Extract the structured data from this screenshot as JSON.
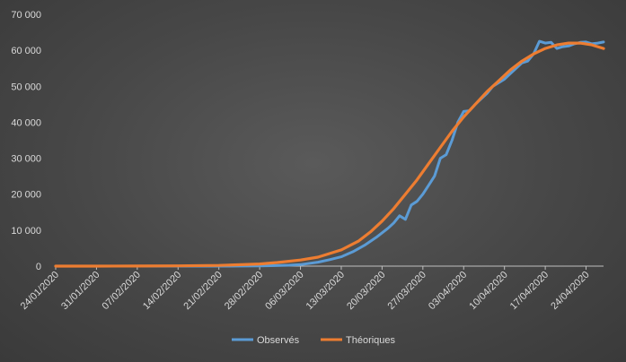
{
  "chart_data": {
    "type": "line",
    "title": "",
    "xlabel": "",
    "ylabel": "",
    "x_ticks": [
      "24/01/2020",
      "31/01/2020",
      "07/02/2020",
      "14/02/2020",
      "21/02/2020",
      "28/02/2020",
      "06/03/2020",
      "13/03/2020",
      "20/03/2020",
      "27/03/2020",
      "03/04/2020",
      "10/04/2020",
      "17/04/2020",
      "24/04/2020"
    ],
    "y_ticks": [
      "0",
      "10 000",
      "20 000",
      "30 000",
      "40 000",
      "50 000",
      "60 000",
      "70 000"
    ],
    "ylim": [
      0,
      70000
    ],
    "grid": false,
    "legend_position": "bottom",
    "series": [
      {
        "name": "Observés",
        "color": "#5b9bd5",
        "points": [
          [
            "24/01/2020",
            0
          ],
          [
            "31/01/2020",
            0
          ],
          [
            "07/02/2020",
            0
          ],
          [
            "14/02/2020",
            10
          ],
          [
            "21/02/2020",
            12
          ],
          [
            "28/02/2020",
            50
          ],
          [
            "01/03/2020",
            120
          ],
          [
            "04/03/2020",
            250
          ],
          [
            "06/03/2020",
            420
          ],
          [
            "09/03/2020",
            1100
          ],
          [
            "11/03/2020",
            1800
          ],
          [
            "13/03/2020",
            2600
          ],
          [
            "15/03/2020",
            4000
          ],
          [
            "17/03/2020",
            5800
          ],
          [
            "19/03/2020",
            8000
          ],
          [
            "21/03/2020",
            10500
          ],
          [
            "22/03/2020",
            12000
          ],
          [
            "23/03/2020",
            14000
          ],
          [
            "24/03/2020",
            13000
          ],
          [
            "25/03/2020",
            17000
          ],
          [
            "26/03/2020",
            18000
          ],
          [
            "27/03/2020",
            20000
          ],
          [
            "28/03/2020",
            22500
          ],
          [
            "29/03/2020",
            25000
          ],
          [
            "30/03/2020",
            30000
          ],
          [
            "31/03/2020",
            31000
          ],
          [
            "01/04/2020",
            35000
          ],
          [
            "02/04/2020",
            40000
          ],
          [
            "03/04/2020",
            43000
          ],
          [
            "04/04/2020",
            43200
          ],
          [
            "05/04/2020",
            45000
          ],
          [
            "06/04/2020",
            46500
          ],
          [
            "07/04/2020",
            48000
          ],
          [
            "08/04/2020",
            50000
          ],
          [
            "09/04/2020",
            51000
          ],
          [
            "10/04/2020",
            52000
          ],
          [
            "11/04/2020",
            53500
          ],
          [
            "12/04/2020",
            55000
          ],
          [
            "13/04/2020",
            56500
          ],
          [
            "14/04/2020",
            57000
          ],
          [
            "15/04/2020",
            59000
          ],
          [
            "16/04/2020",
            62500
          ],
          [
            "17/04/2020",
            62000
          ],
          [
            "18/04/2020",
            62200
          ],
          [
            "19/04/2020",
            60500
          ],
          [
            "20/04/2020",
            61000
          ],
          [
            "21/04/2020",
            61200
          ],
          [
            "22/04/2020",
            61800
          ],
          [
            "23/04/2020",
            62200
          ],
          [
            "24/04/2020",
            62300
          ],
          [
            "25/04/2020",
            61800
          ],
          [
            "26/04/2020",
            62000
          ],
          [
            "27/04/2020",
            62300
          ]
        ]
      },
      {
        "name": "Théoriques",
        "color": "#ed7d31",
        "points": [
          [
            "24/01/2020",
            0
          ],
          [
            "31/01/2020",
            0
          ],
          [
            "07/02/2020",
            20
          ],
          [
            "14/02/2020",
            80
          ],
          [
            "21/02/2020",
            200
          ],
          [
            "28/02/2020",
            600
          ],
          [
            "02/03/2020",
            1000
          ],
          [
            "06/03/2020",
            1700
          ],
          [
            "09/03/2020",
            2500
          ],
          [
            "13/03/2020",
            4500
          ],
          [
            "16/03/2020",
            7000
          ],
          [
            "18/03/2020",
            9500
          ],
          [
            "20/03/2020",
            12500
          ],
          [
            "22/03/2020",
            16000
          ],
          [
            "24/03/2020",
            20000
          ],
          [
            "26/03/2020",
            24000
          ],
          [
            "28/03/2020",
            28500
          ],
          [
            "30/03/2020",
            33000
          ],
          [
            "01/04/2020",
            37500
          ],
          [
            "03/04/2020",
            41500
          ],
          [
            "05/04/2020",
            45000
          ],
          [
            "07/04/2020",
            48500
          ],
          [
            "09/04/2020",
            51500
          ],
          [
            "11/04/2020",
            54500
          ],
          [
            "13/04/2020",
            57000
          ],
          [
            "15/04/2020",
            59000
          ],
          [
            "17/04/2020",
            60500
          ],
          [
            "19/04/2020",
            61500
          ],
          [
            "21/04/2020",
            62000
          ],
          [
            "23/04/2020",
            62000
          ],
          [
            "25/04/2020",
            61500
          ],
          [
            "27/04/2020",
            60500
          ]
        ]
      }
    ]
  }
}
